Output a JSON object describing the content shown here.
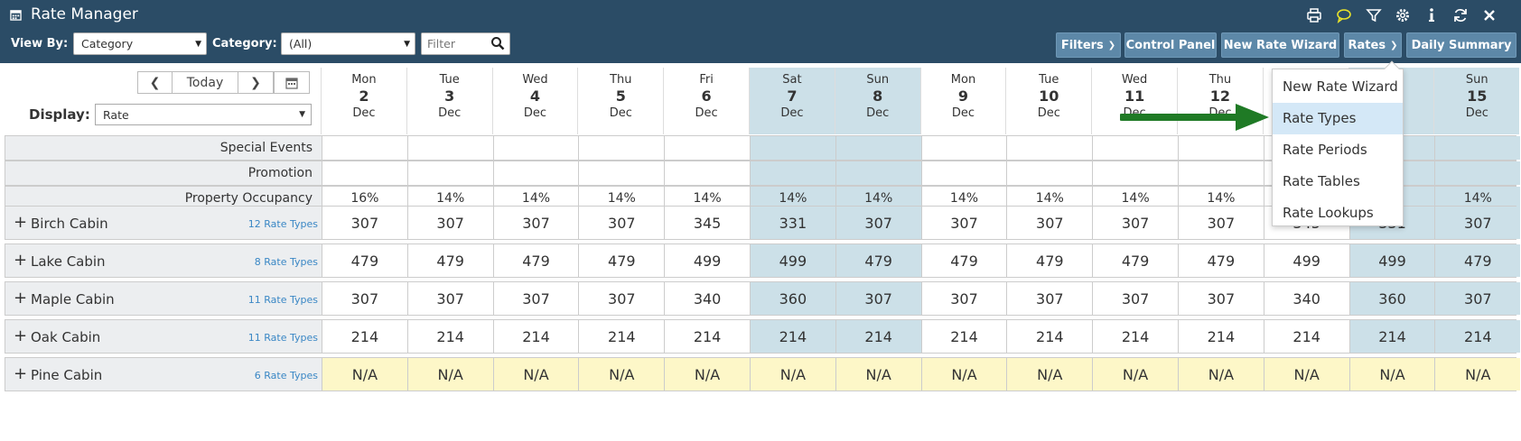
{
  "header": {
    "title": "Rate Manager",
    "icons": [
      "print-icon",
      "chat-icon",
      "filter-icon",
      "gear-icon",
      "info-icon",
      "refresh-icon",
      "close-icon"
    ]
  },
  "controls": {
    "view_by_label": "View By:",
    "view_by_value": "Category",
    "category_label": "Category:",
    "category_value": "(All)",
    "filter_placeholder": "Filter",
    "filters_btn": "Filters",
    "control_panel_btn": "Control Panel",
    "new_rate_wizard_btn": "New Rate Wizard",
    "rates_btn": "Rates",
    "daily_summary_btn": "Daily Summary"
  },
  "nav": {
    "today_label": "Today",
    "display_label": "Display:",
    "display_value": "Rate"
  },
  "days": [
    {
      "dow": "Mon",
      "num": "2",
      "mon": "Dec",
      "weekend": false
    },
    {
      "dow": "Tue",
      "num": "3",
      "mon": "Dec",
      "weekend": false
    },
    {
      "dow": "Wed",
      "num": "4",
      "mon": "Dec",
      "weekend": false
    },
    {
      "dow": "Thu",
      "num": "5",
      "mon": "Dec",
      "weekend": false
    },
    {
      "dow": "Fri",
      "num": "6",
      "mon": "Dec",
      "weekend": false
    },
    {
      "dow": "Sat",
      "num": "7",
      "mon": "Dec",
      "weekend": true
    },
    {
      "dow": "Sun",
      "num": "8",
      "mon": "Dec",
      "weekend": true
    },
    {
      "dow": "Mon",
      "num": "9",
      "mon": "Dec",
      "weekend": false
    },
    {
      "dow": "Tue",
      "num": "10",
      "mon": "Dec",
      "weekend": false
    },
    {
      "dow": "Wed",
      "num": "11",
      "mon": "Dec",
      "weekend": false
    },
    {
      "dow": "Thu",
      "num": "12",
      "mon": "Dec",
      "weekend": false
    },
    {
      "dow": "",
      "num": "",
      "mon": "",
      "weekend": false
    },
    {
      "dow": "",
      "num": "",
      "mon": "",
      "weekend": true
    },
    {
      "dow": "Sun",
      "num": "15",
      "mon": "Dec",
      "weekend": true
    }
  ],
  "info_rows": [
    {
      "label": "Special Events",
      "values": [
        "",
        "",
        "",
        "",
        "",
        "",
        "",
        "",
        "",
        "",
        "",
        "",
        "",
        ""
      ]
    },
    {
      "label": "Promotion",
      "values": [
        "",
        "",
        "",
        "",
        "",
        "",
        "",
        "",
        "",
        "",
        "",
        "",
        "",
        ""
      ]
    },
    {
      "label": "Property Occupancy",
      "values": [
        "16%",
        "14%",
        "14%",
        "14%",
        "14%",
        "14%",
        "14%",
        "14%",
        "14%",
        "14%",
        "14%",
        "",
        "",
        "14%"
      ]
    }
  ],
  "cabins": [
    {
      "name": "Birch Cabin",
      "rate_types": "12 Rate Types",
      "na": false,
      "values": [
        "307",
        "307",
        "307",
        "307",
        "345",
        "331",
        "307",
        "307",
        "307",
        "307",
        "307",
        "345",
        "331",
        "307"
      ]
    },
    {
      "name": "Lake Cabin",
      "rate_types": "8 Rate Types",
      "na": false,
      "values": [
        "479",
        "479",
        "479",
        "479",
        "499",
        "499",
        "479",
        "479",
        "479",
        "479",
        "479",
        "499",
        "499",
        "479"
      ]
    },
    {
      "name": "Maple Cabin",
      "rate_types": "11 Rate Types",
      "na": false,
      "values": [
        "307",
        "307",
        "307",
        "307",
        "340",
        "360",
        "307",
        "307",
        "307",
        "307",
        "307",
        "340",
        "360",
        "307"
      ]
    },
    {
      "name": "Oak Cabin",
      "rate_types": "11 Rate Types",
      "na": false,
      "values": [
        "214",
        "214",
        "214",
        "214",
        "214",
        "214",
        "214",
        "214",
        "214",
        "214",
        "214",
        "214",
        "214",
        "214"
      ]
    },
    {
      "name": "Pine Cabin",
      "rate_types": "6 Rate Types",
      "na": true,
      "values": [
        "N/A",
        "N/A",
        "N/A",
        "N/A",
        "N/A",
        "N/A",
        "N/A",
        "N/A",
        "N/A",
        "N/A",
        "N/A",
        "N/A",
        "N/A",
        "N/A"
      ]
    }
  ],
  "rates_menu": {
    "items": [
      "New Rate Wizard",
      "Rate Types",
      "Rate Periods",
      "Rate Tables",
      "Rate Lookups"
    ],
    "active": "Rate Types"
  },
  "colors": {
    "header_bg": "#2b4c66",
    "button_bg": "#5d88a8",
    "weekend_bg": "#cce0e8",
    "na_bg": "#fdf7c8",
    "link": "#3a87c5",
    "arrow": "#1f7a25"
  }
}
